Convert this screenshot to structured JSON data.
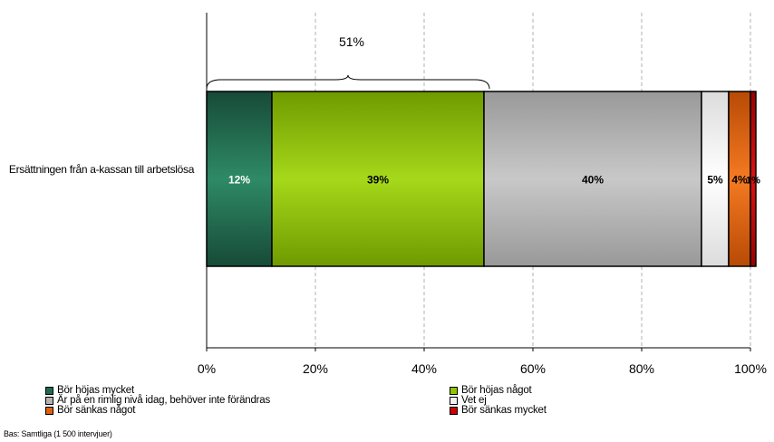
{
  "chart_data": {
    "type": "bar",
    "orientation": "horizontal",
    "stacked": true,
    "categories": [
      "Ersättningen från a-kassan till arbetslösa"
    ],
    "series": [
      {
        "name": "Bör höjas mycket",
        "values": [
          12
        ],
        "label": "12%",
        "color": "#1f6b4f"
      },
      {
        "name": "Bör höjas något",
        "values": [
          39
        ],
        "label": "39%",
        "color": "#8fc400"
      },
      {
        "name": "Är på en rimlig nivå idag, behöver inte förändras",
        "values": [
          40
        ],
        "label": "40%",
        "color": "#b3b3b3"
      },
      {
        "name": "Vet ej",
        "values": [
          5
        ],
        "label": "5%",
        "color": "#f2f2f2"
      },
      {
        "name": "Bör sänkas något",
        "values": [
          4
        ],
        "label": "4%",
        "color": "#e0600d"
      },
      {
        "name": "Bör sänkas mycket",
        "values": [
          1
        ],
        "label": "1%",
        "color": "#cc0000"
      }
    ],
    "bracket_annotation": {
      "label": "51%",
      "from": 0,
      "to": 51
    },
    "x_ticks": [
      "0%",
      "20%",
      "40%",
      "60%",
      "80%",
      "100%"
    ],
    "xlim": [
      0,
      100
    ],
    "grid": "vertical-dashed",
    "legend_position": "bottom",
    "xlabel": "",
    "ylabel": ""
  },
  "footer": {
    "base_note": "Bas: Samtliga (1 500 intervjuer)"
  }
}
